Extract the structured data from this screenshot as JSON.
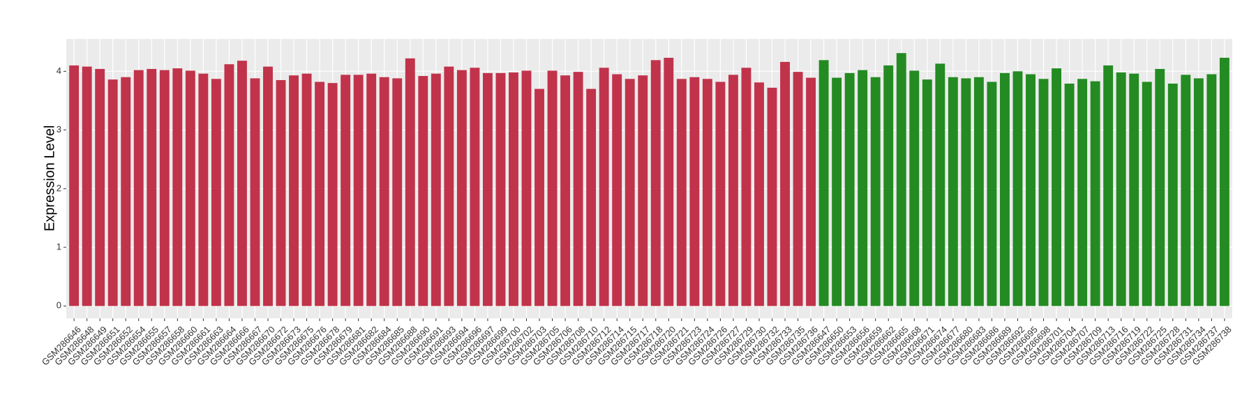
{
  "chart_data": {
    "type": "bar",
    "y_label": "Expression Level",
    "categories": [
      "GSM286646",
      "GSM286648",
      "GSM286649",
      "GSM286651",
      "GSM286652",
      "GSM286654",
      "GSM286655",
      "GSM286657",
      "GSM286658",
      "GSM286660",
      "GSM286661",
      "GSM286663",
      "GSM286664",
      "GSM286666",
      "GSM286667",
      "GSM286670",
      "GSM286672",
      "GSM286673",
      "GSM286675",
      "GSM286676",
      "GSM286678",
      "GSM286679",
      "GSM286681",
      "GSM286682",
      "GSM286684",
      "GSM286685",
      "GSM286688",
      "GSM286690",
      "GSM286691",
      "GSM286693",
      "GSM286694",
      "GSM286696",
      "GSM286697",
      "GSM286699",
      "GSM286700",
      "GSM286702",
      "GSM286703",
      "GSM286705",
      "GSM286706",
      "GSM286708",
      "GSM286710",
      "GSM286712",
      "GSM286714",
      "GSM286715",
      "GSM286717",
      "GSM286718",
      "GSM286720",
      "GSM286721",
      "GSM286723",
      "GSM286724",
      "GSM286726",
      "GSM286727",
      "GSM286729",
      "GSM286730",
      "GSM286732",
      "GSM286733",
      "GSM286735",
      "GSM286736",
      "GSM286647",
      "GSM286650",
      "GSM286653",
      "GSM286656",
      "GSM286659",
      "GSM286662",
      "GSM286665",
      "GSM286668",
      "GSM286671",
      "GSM286674",
      "GSM286677",
      "GSM286680",
      "GSM286683",
      "GSM286686",
      "GSM286689",
      "GSM286692",
      "GSM286695",
      "GSM286698",
      "GSM286701",
      "GSM286704",
      "GSM286707",
      "GSM286709",
      "GSM286713",
      "GSM286716",
      "GSM286719",
      "GSM286722",
      "GSM286725",
      "GSM286728",
      "GSM286731",
      "GSM286734",
      "GSM286737",
      "GSM286738"
    ],
    "series": [
      {
        "color": "#c1334b",
        "values": [
          4.1,
          4.08,
          4.04,
          3.86,
          3.9,
          4.02,
          4.04,
          4.02,
          4.05,
          4.01,
          3.96,
          3.87,
          4.12,
          4.18,
          3.88,
          4.08,
          3.85,
          3.93,
          3.96,
          3.82,
          3.8,
          3.94,
          3.94,
          3.96,
          3.9,
          3.88,
          4.22,
          3.92,
          3.96,
          4.08,
          4.02,
          4.06,
          3.97,
          3.97,
          3.98,
          4.01,
          3.7,
          4.01,
          3.93,
          3.99,
          3.7,
          4.06,
          3.95,
          3.87,
          3.93,
          4.19,
          4.23,
          3.87,
          3.9,
          3.87,
          3.82,
          3.94,
          4.06,
          3.81,
          3.72,
          4.16,
          3.99,
          3.89,
          null,
          null,
          null,
          null,
          null,
          null,
          null,
          null,
          null,
          null,
          null,
          null,
          null,
          null,
          null,
          null,
          null,
          null,
          null,
          null,
          null,
          null,
          null,
          null,
          null,
          null,
          null,
          null,
          null,
          null,
          null,
          null
        ]
      },
      {
        "color": "#238b22",
        "values": [
          null,
          null,
          null,
          null,
          null,
          null,
          null,
          null,
          null,
          null,
          null,
          null,
          null,
          null,
          null,
          null,
          null,
          null,
          null,
          null,
          null,
          null,
          null,
          null,
          null,
          null,
          null,
          null,
          null,
          null,
          null,
          null,
          null,
          null,
          null,
          null,
          null,
          null,
          null,
          null,
          null,
          null,
          null,
          null,
          null,
          null,
          null,
          null,
          null,
          null,
          null,
          null,
          null,
          null,
          null,
          null,
          null,
          null,
          4.19,
          3.89,
          3.97,
          4.02,
          3.9,
          4.1,
          4.31,
          4.01,
          3.86,
          4.13,
          3.9,
          3.88,
          3.9,
          3.82,
          3.97,
          4.0,
          3.95,
          3.87,
          4.05,
          3.79,
          3.87,
          3.83,
          4.1,
          3.98,
          3.96,
          3.82,
          4.04,
          3.79,
          3.94,
          3.88,
          3.95,
          4.23
        ]
      }
    ],
    "ylim": [
      -0.21,
      4.55
    ],
    "yticks": [
      0,
      1,
      2,
      3,
      4
    ],
    "grid": true
  }
}
